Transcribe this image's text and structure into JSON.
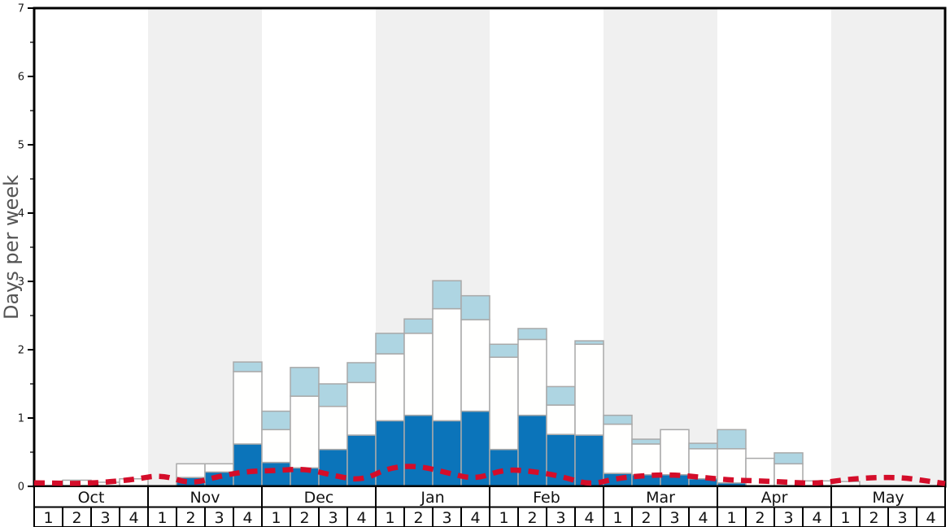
{
  "chart": {
    "ylabel": "Days per week"
  },
  "chart_data": {
    "type": "bar",
    "subtype": "stacked-bars-with-dashed-line-overlay",
    "title": "",
    "xlabel": "",
    "ylabel": "Days per week",
    "ylim": [
      0,
      7
    ],
    "ytick_major_step": 1,
    "ytick_minor_step": 0.5,
    "ytick_labels": [
      "0",
      "1",
      "2",
      "3",
      "4",
      "5",
      "6",
      "7"
    ],
    "grid": false,
    "legend_position": "none",
    "months": [
      "Oct",
      "Nov",
      "Dec",
      "Jan",
      "Feb",
      "Mar",
      "Apr",
      "May"
    ],
    "week_labels_per_month": [
      "1",
      "2",
      "3",
      "4"
    ],
    "shaded_months": [
      "Nov",
      "Jan",
      "Mar",
      "May"
    ],
    "stack_order_bottom_to_top": [
      "dark_blue",
      "white",
      "light_blue"
    ],
    "series": [
      {
        "name": "dark_blue_segment_top",
        "values": [
          0,
          0,
          0,
          0,
          0,
          0.13,
          0.21,
          0.62,
          0.35,
          0.27,
          0.54,
          0.75,
          0.96,
          1.04,
          0.96,
          1.1,
          0.54,
          1.04,
          0.76,
          0.75,
          0.19,
          0.17,
          0.17,
          0.11,
          0.05,
          0,
          0,
          0,
          0,
          0,
          0,
          0
        ]
      },
      {
        "name": "white_segment_cumulative_top",
        "values": [
          0,
          0.09,
          0.06,
          0.11,
          0,
          0.33,
          0.33,
          1.68,
          0.83,
          1.32,
          1.17,
          1.52,
          1.94,
          2.24,
          2.6,
          2.44,
          1.89,
          2.15,
          1.19,
          2.08,
          0.91,
          0.62,
          0.83,
          0.55,
          0.55,
          0.41,
          0.33,
          0.08,
          0.07,
          0,
          0,
          0
        ]
      },
      {
        "name": "light_blue_segment_cumulative_top",
        "values": [
          0,
          0.09,
          0.06,
          0.11,
          0,
          0.33,
          0.33,
          1.82,
          1.1,
          1.74,
          1.5,
          1.81,
          2.24,
          2.45,
          3.01,
          2.79,
          2.08,
          2.31,
          1.46,
          2.13,
          1.04,
          0.69,
          0.83,
          0.63,
          0.83,
          0.41,
          0.49,
          0.08,
          0.07,
          0,
          0,
          0
        ]
      },
      {
        "name": "red_dashed_line",
        "values": [
          0.05,
          0.04,
          0.06,
          0.1,
          0.17,
          0.03,
          0.15,
          0.22,
          0.23,
          0.26,
          0.16,
          0.08,
          0.28,
          0.3,
          0.2,
          0.1,
          0.25,
          0.22,
          0.15,
          0.02,
          0.12,
          0.16,
          0.17,
          0.13,
          0.09,
          0.08,
          0.06,
          0.04,
          0.1,
          0.13,
          0.13,
          0.07
        ]
      }
    ],
    "red_line_edges": {
      "start": 0.05,
      "end": 0.04
    },
    "colors": {
      "dark_blue": "#0b74ba",
      "light_blue": "#aed5e2",
      "bar_white": "#fffffe",
      "bar_border": "#a9a9a9",
      "red_line": "#d40d2a",
      "band": "#f0f0f0",
      "axis": "#000000",
      "ylabel_text": "#555555",
      "tick_text": "#1a1a1a",
      "table_text": "#111111",
      "table_border": "#000000",
      "table_fill": "#ffffff"
    }
  }
}
